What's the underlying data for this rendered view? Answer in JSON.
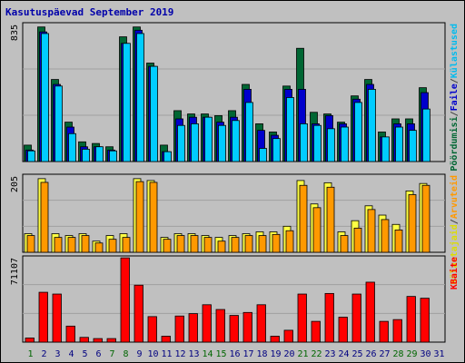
{
  "title": "Kasutuspäevad September 2019",
  "y_top_labels": {
    "panel1": "835",
    "panel2": "205",
    "panel3": "71107"
  },
  "right_labels": {
    "panel1": [
      {
        "text": "Pöördumisi",
        "color": "#006633"
      },
      {
        "text": "/",
        "color": "#444444"
      },
      {
        "text": "Faile",
        "color": "#0000cc"
      },
      {
        "text": "/",
        "color": "#444444"
      },
      {
        "text": "Külastused",
        "color": "#00bbee"
      }
    ],
    "panel2": [
      {
        "text": "Külastajaid",
        "color": "#dddd00"
      },
      {
        "text": "/",
        "color": "#444444"
      },
      {
        "text": "Arvuteid",
        "color": "#ff9900"
      }
    ],
    "panel3": [
      {
        "text": "KBaite",
        "color": "#ff0000"
      }
    ]
  },
  "colors": {
    "hits": "#006633",
    "files": "#0000cc",
    "pages": "#00ccff",
    "visits": "#ffff44",
    "sites": "#ff9900",
    "kbytes": "#ff0000",
    "weekday": "#000080",
    "weekend": "#006600"
  },
  "chart_data": [
    {
      "type": "bar",
      "title": "Kasutuspäevad September 2019",
      "categories": [
        "1",
        "2",
        "3",
        "4",
        "5",
        "6",
        "7",
        "8",
        "9",
        "10",
        "11",
        "12",
        "13",
        "14",
        "15",
        "16",
        "17",
        "18",
        "19",
        "20",
        "21",
        "22",
        "23",
        "24",
        "25",
        "26",
        "27",
        "28",
        "29",
        "30",
        "31"
      ],
      "weekend_days": [
        1,
        7,
        8,
        14,
        15,
        21,
        22,
        28,
        29
      ],
      "ylim": [
        0,
        835
      ],
      "series": [
        {
          "name": "Pöördumisi",
          "values": [
            100,
            820,
            500,
            240,
            120,
            110,
            90,
            760,
            820,
            600,
            100,
            310,
            290,
            290,
            280,
            310,
            470,
            230,
            180,
            460,
            690,
            300,
            290,
            240,
            400,
            500,
            180,
            260,
            260,
            450,
            0
          ]
        },
        {
          "name": "Faile",
          "values": [
            70,
            790,
            470,
            210,
            90,
            90,
            70,
            720,
            800,
            580,
            60,
            260,
            270,
            270,
            240,
            270,
            440,
            190,
            160,
            440,
            440,
            230,
            280,
            230,
            380,
            470,
            150,
            230,
            230,
            420,
            0
          ]
        },
        {
          "name": "Külastused",
          "values": [
            65,
            780,
            460,
            170,
            75,
            90,
            65,
            720,
            780,
            580,
            60,
            220,
            230,
            270,
            220,
            250,
            360,
            80,
            140,
            390,
            230,
            220,
            200,
            210,
            360,
            440,
            150,
            210,
            190,
            320,
            0
          ]
        }
      ]
    },
    {
      "type": "bar",
      "ylim": [
        0,
        205
      ],
      "series": [
        {
          "name": "Külastajaid",
          "values": [
            50,
            198,
            50,
            45,
            50,
            30,
            45,
            50,
            198,
            193,
            40,
            50,
            50,
            45,
            40,
            45,
            50,
            55,
            55,
            70,
            193,
            130,
            187,
            55,
            85,
            125,
            100,
            75,
            165,
            185,
            0
          ]
        },
        {
          "name": "Arvuteid",
          "values": [
            45,
            188,
            40,
            40,
            45,
            25,
            35,
            40,
            190,
            188,
            35,
            45,
            45,
            40,
            30,
            40,
            45,
            45,
            48,
            58,
            180,
            120,
            175,
            45,
            65,
            115,
            88,
            60,
            155,
            180,
            0
          ]
        }
      ]
    },
    {
      "type": "bar",
      "ylim": [
        0,
        71107
      ],
      "series": [
        {
          "name": "KBaite",
          "values": [
            3500,
            42000,
            40500,
            13500,
            4000,
            3000,
            3000,
            71000,
            48000,
            21500,
            5000,
            22000,
            24000,
            31500,
            27500,
            22500,
            25000,
            31500,
            5000,
            10000,
            40500,
            17500,
            41000,
            21000,
            40500,
            50500,
            17500,
            19000,
            38500,
            37000,
            0
          ]
        }
      ]
    }
  ]
}
